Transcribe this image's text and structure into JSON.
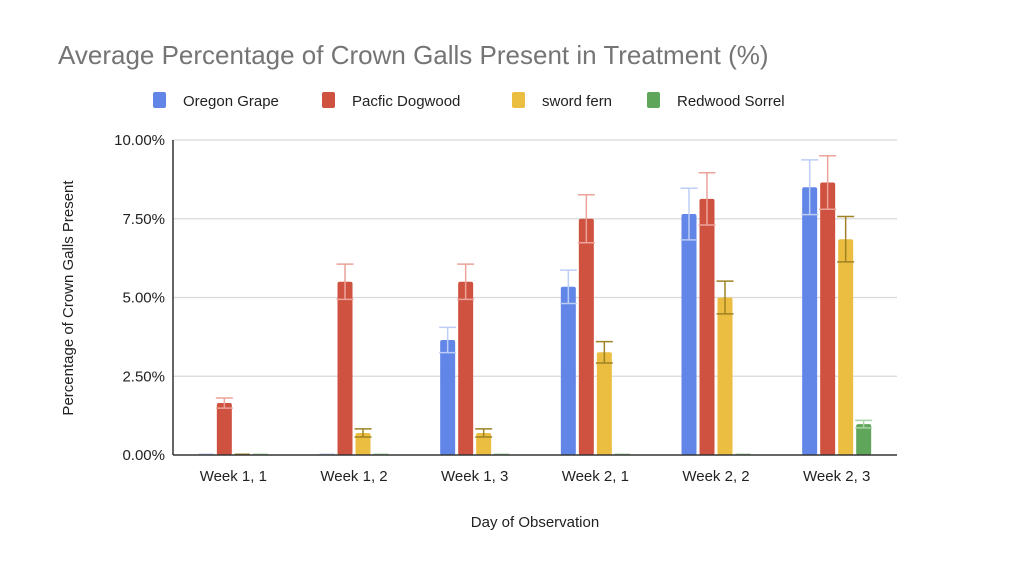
{
  "chart_data": {
    "type": "bar",
    "title": "Average Percentage of Crown Galls Present in Treatment (%)",
    "xlabel": "Day of Observation",
    "ylabel": "Percentage of Crown Galls Present",
    "ylim": [
      0,
      10
    ],
    "yticks": [
      0,
      2.5,
      5,
      7.5,
      10
    ],
    "ytick_labels": [
      "0.00%",
      "2.50%",
      "5.00%",
      "7.50%",
      "10.00%"
    ],
    "grid": true,
    "legend_position": "top",
    "categories": [
      "Week 1, 1",
      "Week 1, 2",
      "Week 1, 3",
      "Week 2, 1",
      "Week 2, 2",
      "Week 2, 3"
    ],
    "series": [
      {
        "name": "Oregon Grape",
        "color": "#6286e8",
        "errcolor": "#bccdf6",
        "values": [
          0,
          0,
          3.65,
          5.34,
          7.65,
          8.5
        ],
        "errors": [
          0,
          0,
          0.4,
          0.53,
          0.82,
          0.87
        ]
      },
      {
        "name": "Pacfic Dogwood",
        "color": "#cf5140",
        "errcolor": "#eba39a",
        "values": [
          1.65,
          5.5,
          5.5,
          7.5,
          8.13,
          8.65
        ],
        "errors": [
          0.16,
          0.56,
          0.56,
          0.76,
          0.83,
          0.85
        ]
      },
      {
        "name": "sword fern",
        "color": "#ebbe41",
        "errcolor": "#9e8223",
        "values": [
          0,
          0.7,
          0.7,
          3.26,
          5.0,
          6.85
        ],
        "errors": [
          0,
          0.13,
          0.13,
          0.34,
          0.52,
          0.72
        ]
      },
      {
        "name": "Redwood Sorrel",
        "color": "#5fa55a",
        "errcolor": "#a8d4a5",
        "values": [
          0,
          0,
          0,
          0,
          0,
          0.98
        ],
        "errors": [
          0,
          0,
          0,
          0,
          0,
          0.12
        ]
      }
    ]
  }
}
